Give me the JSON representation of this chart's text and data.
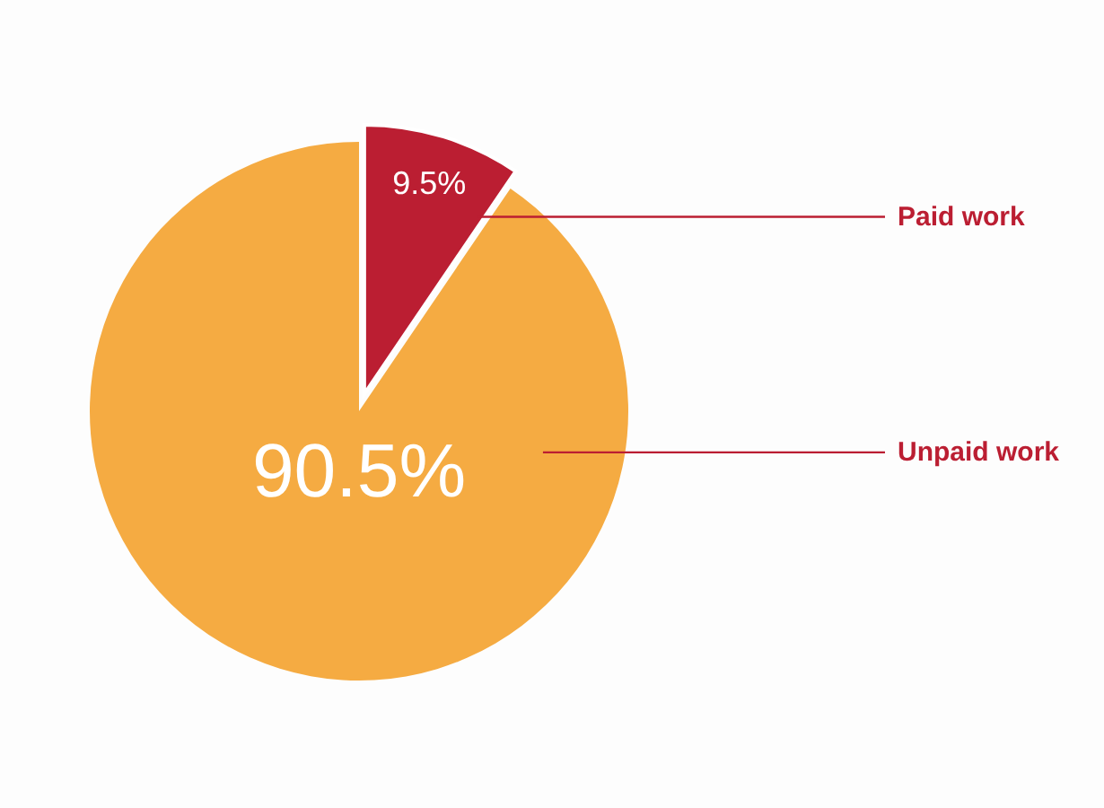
{
  "chart_data": {
    "type": "pie",
    "categories": [
      "Paid work",
      "Unpaid work"
    ],
    "values": [
      9.5,
      90.5
    ],
    "value_labels": [
      "9.5%",
      "90.5%"
    ],
    "colors": [
      "#bb1e32",
      "#f5ab42"
    ]
  }
}
